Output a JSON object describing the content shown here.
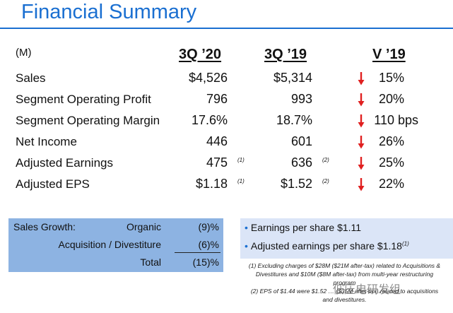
{
  "title": "Financial Summary",
  "unit": "(M)",
  "columns": [
    "3Q ’20",
    "3Q ’19",
    "V ’19"
  ],
  "rows": [
    {
      "label": "Sales",
      "q20": "$4,526",
      "q19": "$5,314",
      "change": "15%",
      "note20": "",
      "note19": ""
    },
    {
      "label": "Segment Operating Profit",
      "q20": "796",
      "q19": "993",
      "change": "20%",
      "note20": "",
      "note19": ""
    },
    {
      "label": "Segment Operating Margin",
      "q20": "17.6%",
      "q19": "18.7%",
      "change": "110 bps",
      "note20": "",
      "note19": ""
    },
    {
      "label": "Net Income",
      "q20": "446",
      "q19": "601",
      "change": "26%",
      "note20": "",
      "note19": ""
    },
    {
      "label": "Adjusted Earnings",
      "q20": "475",
      "q19": "636",
      "change": "25%",
      "note20": "(1)",
      "note19": "(2)"
    },
    {
      "label": "Adjusted EPS",
      "q20": "$1.18",
      "q19": "$1.52",
      "change": "22%",
      "note20": "(1)",
      "note19": "(2)"
    }
  ],
  "change_arrow_color": "#e02020",
  "sales_growth": {
    "label": "Sales Growth:",
    "organic_label": "Organic",
    "organic_value": "(9)%",
    "acq_label": "Acquisition / Divestiture",
    "acq_value": "(6)%",
    "total_label": "Total",
    "total_value": "(15)%"
  },
  "eps_box": {
    "bullet1": "Earnings per share $1.11",
    "bullet2": "Adjusted earnings per share $1.18",
    "bullet2_note": "(1)"
  },
  "footnotes": {
    "note1": "(1) Excluding charges of $28M ($21M after-tax) related to Acquisitions & Divestitures and $10M ($8M after-tax) from multi-year restructuring program",
    "note2": "(2) EPS of $1.44 were $1.52 … ($35M after-tax) related to acquisitions and divestitures."
  },
  "watermark": "低压电研发组"
}
